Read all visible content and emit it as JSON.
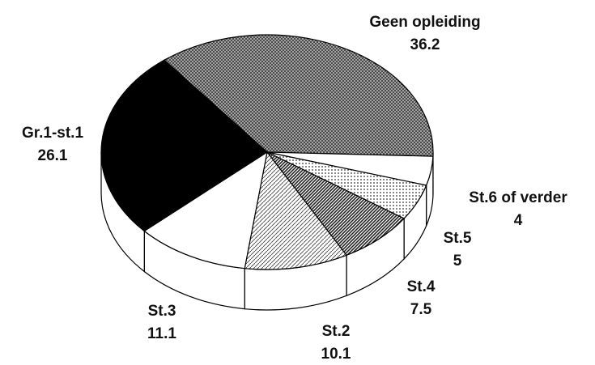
{
  "chart_data": {
    "type": "pie",
    "categories": [
      "Geen opleiding",
      "St.6 of verder",
      "St.5",
      "St.4",
      "St.2",
      "St.3",
      "Gr.1-st.1"
    ],
    "values": [
      36.2,
      4,
      5,
      7.5,
      10.1,
      11.1,
      26.1
    ],
    "patterns": [
      "crosshatch",
      "white",
      "dots",
      "dense-diagonal",
      "light-diagonal",
      "white",
      "black"
    ]
  }
}
